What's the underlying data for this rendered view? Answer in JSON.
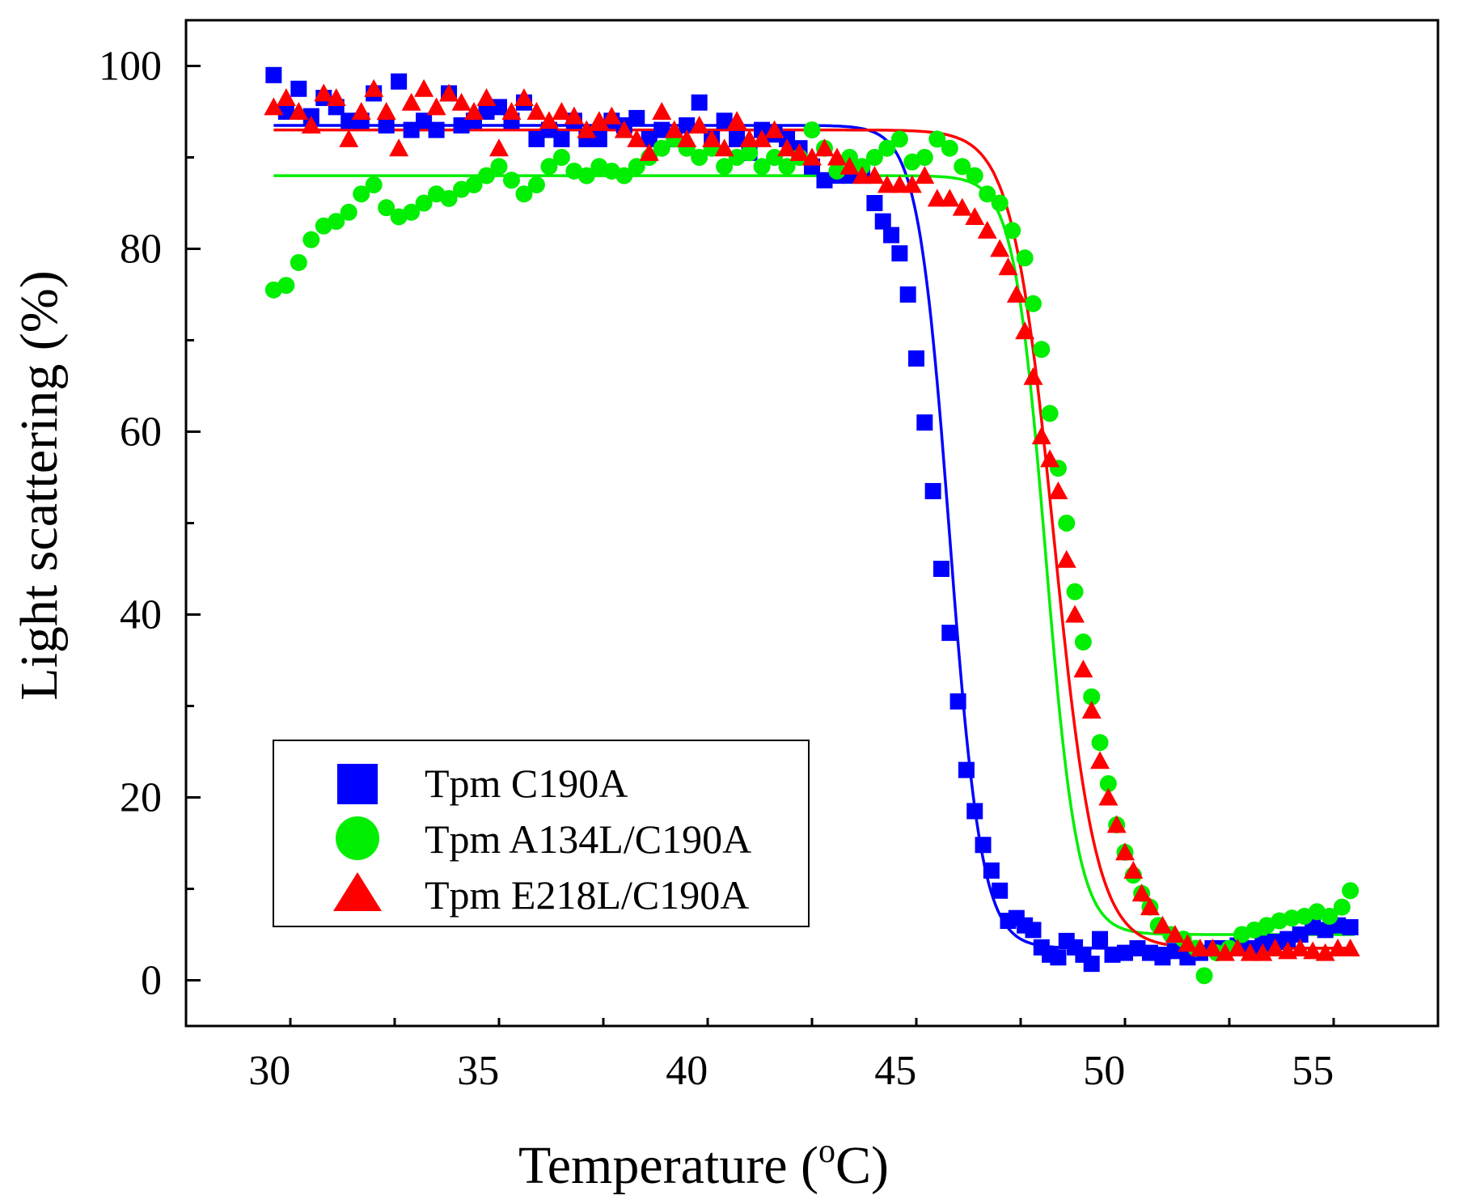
{
  "chart_data": {
    "type": "scatter",
    "xlabel_main": "Temperature (",
    "xlabel_sup": "o",
    "xlabel_end": "C)",
    "ylabel": "Light scattering (%)",
    "xlim": [
      28,
      58
    ],
    "ylim": [
      -5,
      105
    ],
    "x_ticks": [
      30,
      35,
      40,
      45,
      50,
      55
    ],
    "y_ticks": [
      0,
      20,
      40,
      60,
      80,
      100
    ],
    "legend_position": "bottom-left",
    "series": [
      {
        "name": "Tpm C190A",
        "color": "#0000ff",
        "marker": "square",
        "fit": {
          "top": 93.5,
          "bottom": 3.5,
          "tm": 46.3,
          "slope": 0.38
        },
        "points": [
          [
            30.1,
            99
          ],
          [
            30.4,
            95
          ],
          [
            30.7,
            97.5
          ],
          [
            31.0,
            94.5
          ],
          [
            31.3,
            96.5
          ],
          [
            31.6,
            95.5
          ],
          [
            31.9,
            94
          ],
          [
            32.2,
            94
          ],
          [
            32.5,
            97
          ],
          [
            32.8,
            93.5
          ],
          [
            33.1,
            98.3
          ],
          [
            33.4,
            93
          ],
          [
            33.7,
            94
          ],
          [
            34.0,
            93
          ],
          [
            34.3,
            97
          ],
          [
            34.6,
            93.5
          ],
          [
            34.9,
            94
          ],
          [
            35.2,
            95
          ],
          [
            35.5,
            95.5
          ],
          [
            35.8,
            94
          ],
          [
            36.1,
            96
          ],
          [
            36.4,
            92
          ],
          [
            36.7,
            93
          ],
          [
            37.0,
            92
          ],
          [
            37.3,
            94
          ],
          [
            37.6,
            92
          ],
          [
            37.9,
            92
          ],
          [
            38.2,
            94
          ],
          [
            38.5,
            93.5
          ],
          [
            38.8,
            94.3
          ],
          [
            39.1,
            92
          ],
          [
            39.4,
            93
          ],
          [
            39.7,
            92
          ],
          [
            40.0,
            93.5
          ],
          [
            40.3,
            96
          ],
          [
            40.6,
            92
          ],
          [
            40.9,
            94
          ],
          [
            41.2,
            92
          ],
          [
            41.5,
            90.5
          ],
          [
            41.8,
            93
          ],
          [
            42.1,
            92.5
          ],
          [
            42.4,
            92
          ],
          [
            42.7,
            91
          ],
          [
            43.0,
            89
          ],
          [
            43.3,
            87.5
          ],
          [
            43.6,
            88
          ],
          [
            43.9,
            88
          ],
          [
            44.2,
            88
          ],
          [
            44.5,
            85
          ],
          [
            44.7,
            83
          ],
          [
            44.9,
            81.5
          ],
          [
            45.1,
            79.5
          ],
          [
            45.3,
            75
          ],
          [
            45.5,
            68
          ],
          [
            45.7,
            61
          ],
          [
            45.9,
            53.5
          ],
          [
            46.1,
            45
          ],
          [
            46.3,
            38
          ],
          [
            46.5,
            30.5
          ],
          [
            46.7,
            23
          ],
          [
            46.9,
            18.5
          ],
          [
            47.1,
            14.8
          ],
          [
            47.3,
            12
          ],
          [
            47.5,
            9.8
          ],
          [
            47.7,
            6.5
          ],
          [
            47.9,
            6.8
          ],
          [
            48.1,
            6
          ],
          [
            48.3,
            5.5
          ],
          [
            48.5,
            3.6
          ],
          [
            48.7,
            2.8
          ],
          [
            48.9,
            2.5
          ],
          [
            49.1,
            4.3
          ],
          [
            49.3,
            3.6
          ],
          [
            49.5,
            2.8
          ],
          [
            49.7,
            1.8
          ],
          [
            49.9,
            4.5
          ],
          [
            50.2,
            2.8
          ],
          [
            50.5,
            3
          ],
          [
            50.8,
            3.5
          ],
          [
            51.1,
            3
          ],
          [
            51.4,
            2.5
          ],
          [
            51.7,
            3.2
          ],
          [
            52.0,
            2.5
          ],
          [
            52.3,
            3
          ],
          [
            52.6,
            3.5
          ],
          [
            52.9,
            3.5
          ],
          [
            53.2,
            3.8
          ],
          [
            53.5,
            3.5
          ],
          [
            53.8,
            4
          ],
          [
            54.1,
            4.2
          ],
          [
            54.4,
            4.5
          ],
          [
            54.7,
            5
          ],
          [
            55.0,
            5.8
          ],
          [
            55.3,
            5.5
          ],
          [
            55.6,
            6
          ],
          [
            55.9,
            5.8
          ]
        ]
      },
      {
        "name": "Tpm A134L/C190A",
        "color": "#00ee00",
        "marker": "circle",
        "fit": {
          "top": 88,
          "bottom": 5,
          "tm": 48.6,
          "slope": 0.38
        },
        "points": [
          [
            30.1,
            75.5
          ],
          [
            30.4,
            76
          ],
          [
            30.7,
            78.5
          ],
          [
            31.0,
            81
          ],
          [
            31.3,
            82.5
          ],
          [
            31.6,
            83
          ],
          [
            31.9,
            84
          ],
          [
            32.2,
            86
          ],
          [
            32.5,
            87
          ],
          [
            32.8,
            84.5
          ],
          [
            33.1,
            83.5
          ],
          [
            33.4,
            84
          ],
          [
            33.7,
            85
          ],
          [
            34.0,
            86
          ],
          [
            34.3,
            85.5
          ],
          [
            34.6,
            86.5
          ],
          [
            34.9,
            87
          ],
          [
            35.2,
            88
          ],
          [
            35.5,
            89
          ],
          [
            35.8,
            87.5
          ],
          [
            36.1,
            86
          ],
          [
            36.4,
            87
          ],
          [
            36.7,
            89
          ],
          [
            37.0,
            90
          ],
          [
            37.3,
            88.5
          ],
          [
            37.6,
            88
          ],
          [
            37.9,
            89
          ],
          [
            38.2,
            88.5
          ],
          [
            38.5,
            88
          ],
          [
            38.8,
            89
          ],
          [
            39.1,
            90
          ],
          [
            39.4,
            91
          ],
          [
            39.7,
            92
          ],
          [
            40.0,
            91
          ],
          [
            40.3,
            90
          ],
          [
            40.6,
            91
          ],
          [
            40.9,
            89
          ],
          [
            41.2,
            90
          ],
          [
            41.5,
            90.5
          ],
          [
            41.8,
            89
          ],
          [
            42.1,
            90
          ],
          [
            42.4,
            89
          ],
          [
            42.7,
            90
          ],
          [
            43.0,
            93
          ],
          [
            43.3,
            91
          ],
          [
            43.6,
            88.5
          ],
          [
            43.9,
            90
          ],
          [
            44.2,
            89
          ],
          [
            44.5,
            90
          ],
          [
            44.8,
            91
          ],
          [
            45.1,
            92
          ],
          [
            45.4,
            89.5
          ],
          [
            45.7,
            90
          ],
          [
            46.0,
            92
          ],
          [
            46.3,
            91
          ],
          [
            46.6,
            89
          ],
          [
            46.9,
            88
          ],
          [
            47.2,
            86
          ],
          [
            47.5,
            85
          ],
          [
            47.8,
            82
          ],
          [
            48.1,
            79
          ],
          [
            48.3,
            74
          ],
          [
            48.5,
            69
          ],
          [
            48.7,
            62
          ],
          [
            48.9,
            56
          ],
          [
            49.1,
            50
          ],
          [
            49.3,
            42.5
          ],
          [
            49.5,
            37
          ],
          [
            49.7,
            31
          ],
          [
            49.9,
            26
          ],
          [
            50.1,
            21.5
          ],
          [
            50.3,
            17
          ],
          [
            50.5,
            14
          ],
          [
            50.7,
            11.5
          ],
          [
            50.9,
            9.5
          ],
          [
            51.1,
            8
          ],
          [
            51.3,
            6
          ],
          [
            51.6,
            5
          ],
          [
            51.9,
            4.5
          ],
          [
            52.2,
            3.5
          ],
          [
            52.4,
            0.5
          ],
          [
            52.7,
            3
          ],
          [
            53.0,
            3.5
          ],
          [
            53.3,
            5
          ],
          [
            53.6,
            5.5
          ],
          [
            53.9,
            6
          ],
          [
            54.2,
            6.5
          ],
          [
            54.5,
            6.8
          ],
          [
            54.8,
            7
          ],
          [
            55.1,
            7.5
          ],
          [
            55.4,
            7
          ],
          [
            55.7,
            8
          ],
          [
            55.9,
            9.8
          ]
        ]
      },
      {
        "name": "Tpm E218L/C190A",
        "color": "#ff0000",
        "marker": "triangle",
        "fit": {
          "top": 93,
          "bottom": 3.5,
          "tm": 48.8,
          "slope": 0.5
        },
        "points": [
          [
            30.1,
            95.5
          ],
          [
            30.4,
            96.5
          ],
          [
            30.7,
            95
          ],
          [
            31.0,
            93.5
          ],
          [
            31.3,
            97
          ],
          [
            31.6,
            96.5
          ],
          [
            31.9,
            92
          ],
          [
            32.2,
            95
          ],
          [
            32.5,
            97.5
          ],
          [
            32.8,
            95
          ],
          [
            33.1,
            91
          ],
          [
            33.4,
            96
          ],
          [
            33.7,
            97.5
          ],
          [
            34.0,
            95.5
          ],
          [
            34.3,
            97
          ],
          [
            34.6,
            96
          ],
          [
            34.9,
            95
          ],
          [
            35.2,
            96.5
          ],
          [
            35.5,
            91
          ],
          [
            35.8,
            95
          ],
          [
            36.1,
            96.5
          ],
          [
            36.4,
            95
          ],
          [
            36.7,
            94
          ],
          [
            37.0,
            95
          ],
          [
            37.3,
            94.5
          ],
          [
            37.6,
            93
          ],
          [
            37.9,
            94
          ],
          [
            38.2,
            94.5
          ],
          [
            38.5,
            93
          ],
          [
            38.8,
            92
          ],
          [
            39.1,
            90.5
          ],
          [
            39.4,
            95
          ],
          [
            39.7,
            93
          ],
          [
            40.0,
            92
          ],
          [
            40.3,
            93.5
          ],
          [
            40.6,
            92
          ],
          [
            40.9,
            91
          ],
          [
            41.2,
            94
          ],
          [
            41.5,
            92
          ],
          [
            41.8,
            92
          ],
          [
            42.1,
            93
          ],
          [
            42.4,
            91
          ],
          [
            42.7,
            90.5
          ],
          [
            43.0,
            90
          ],
          [
            43.3,
            91
          ],
          [
            43.6,
            90
          ],
          [
            43.9,
            89
          ],
          [
            44.2,
            88
          ],
          [
            44.5,
            88
          ],
          [
            44.8,
            87
          ],
          [
            45.1,
            87
          ],
          [
            45.4,
            87
          ],
          [
            45.7,
            88
          ],
          [
            46.0,
            85.5
          ],
          [
            46.3,
            85.5
          ],
          [
            46.6,
            84.5
          ],
          [
            46.9,
            83.5
          ],
          [
            47.2,
            82
          ],
          [
            47.5,
            80
          ],
          [
            47.7,
            78
          ],
          [
            47.9,
            75
          ],
          [
            48.1,
            71
          ],
          [
            48.3,
            66
          ],
          [
            48.5,
            59.5
          ],
          [
            48.7,
            57
          ],
          [
            48.9,
            53.5
          ],
          [
            49.1,
            46
          ],
          [
            49.3,
            40
          ],
          [
            49.5,
            34
          ],
          [
            49.7,
            29.5
          ],
          [
            49.9,
            24
          ],
          [
            50.1,
            20
          ],
          [
            50.3,
            17
          ],
          [
            50.5,
            14
          ],
          [
            50.7,
            12
          ],
          [
            50.9,
            9.5
          ],
          [
            51.1,
            8
          ],
          [
            51.4,
            6
          ],
          [
            51.7,
            5
          ],
          [
            52.0,
            4
          ],
          [
            52.3,
            3.5
          ],
          [
            52.6,
            3.5
          ],
          [
            52.9,
            3
          ],
          [
            53.2,
            3.5
          ],
          [
            53.5,
            3
          ],
          [
            53.8,
            3
          ],
          [
            54.1,
            3.5
          ],
          [
            54.4,
            3.2
          ],
          [
            54.7,
            3.5
          ],
          [
            55.0,
            3.2
          ],
          [
            55.3,
            3
          ],
          [
            55.6,
            3.5
          ],
          [
            55.9,
            3.5
          ]
        ]
      }
    ]
  }
}
